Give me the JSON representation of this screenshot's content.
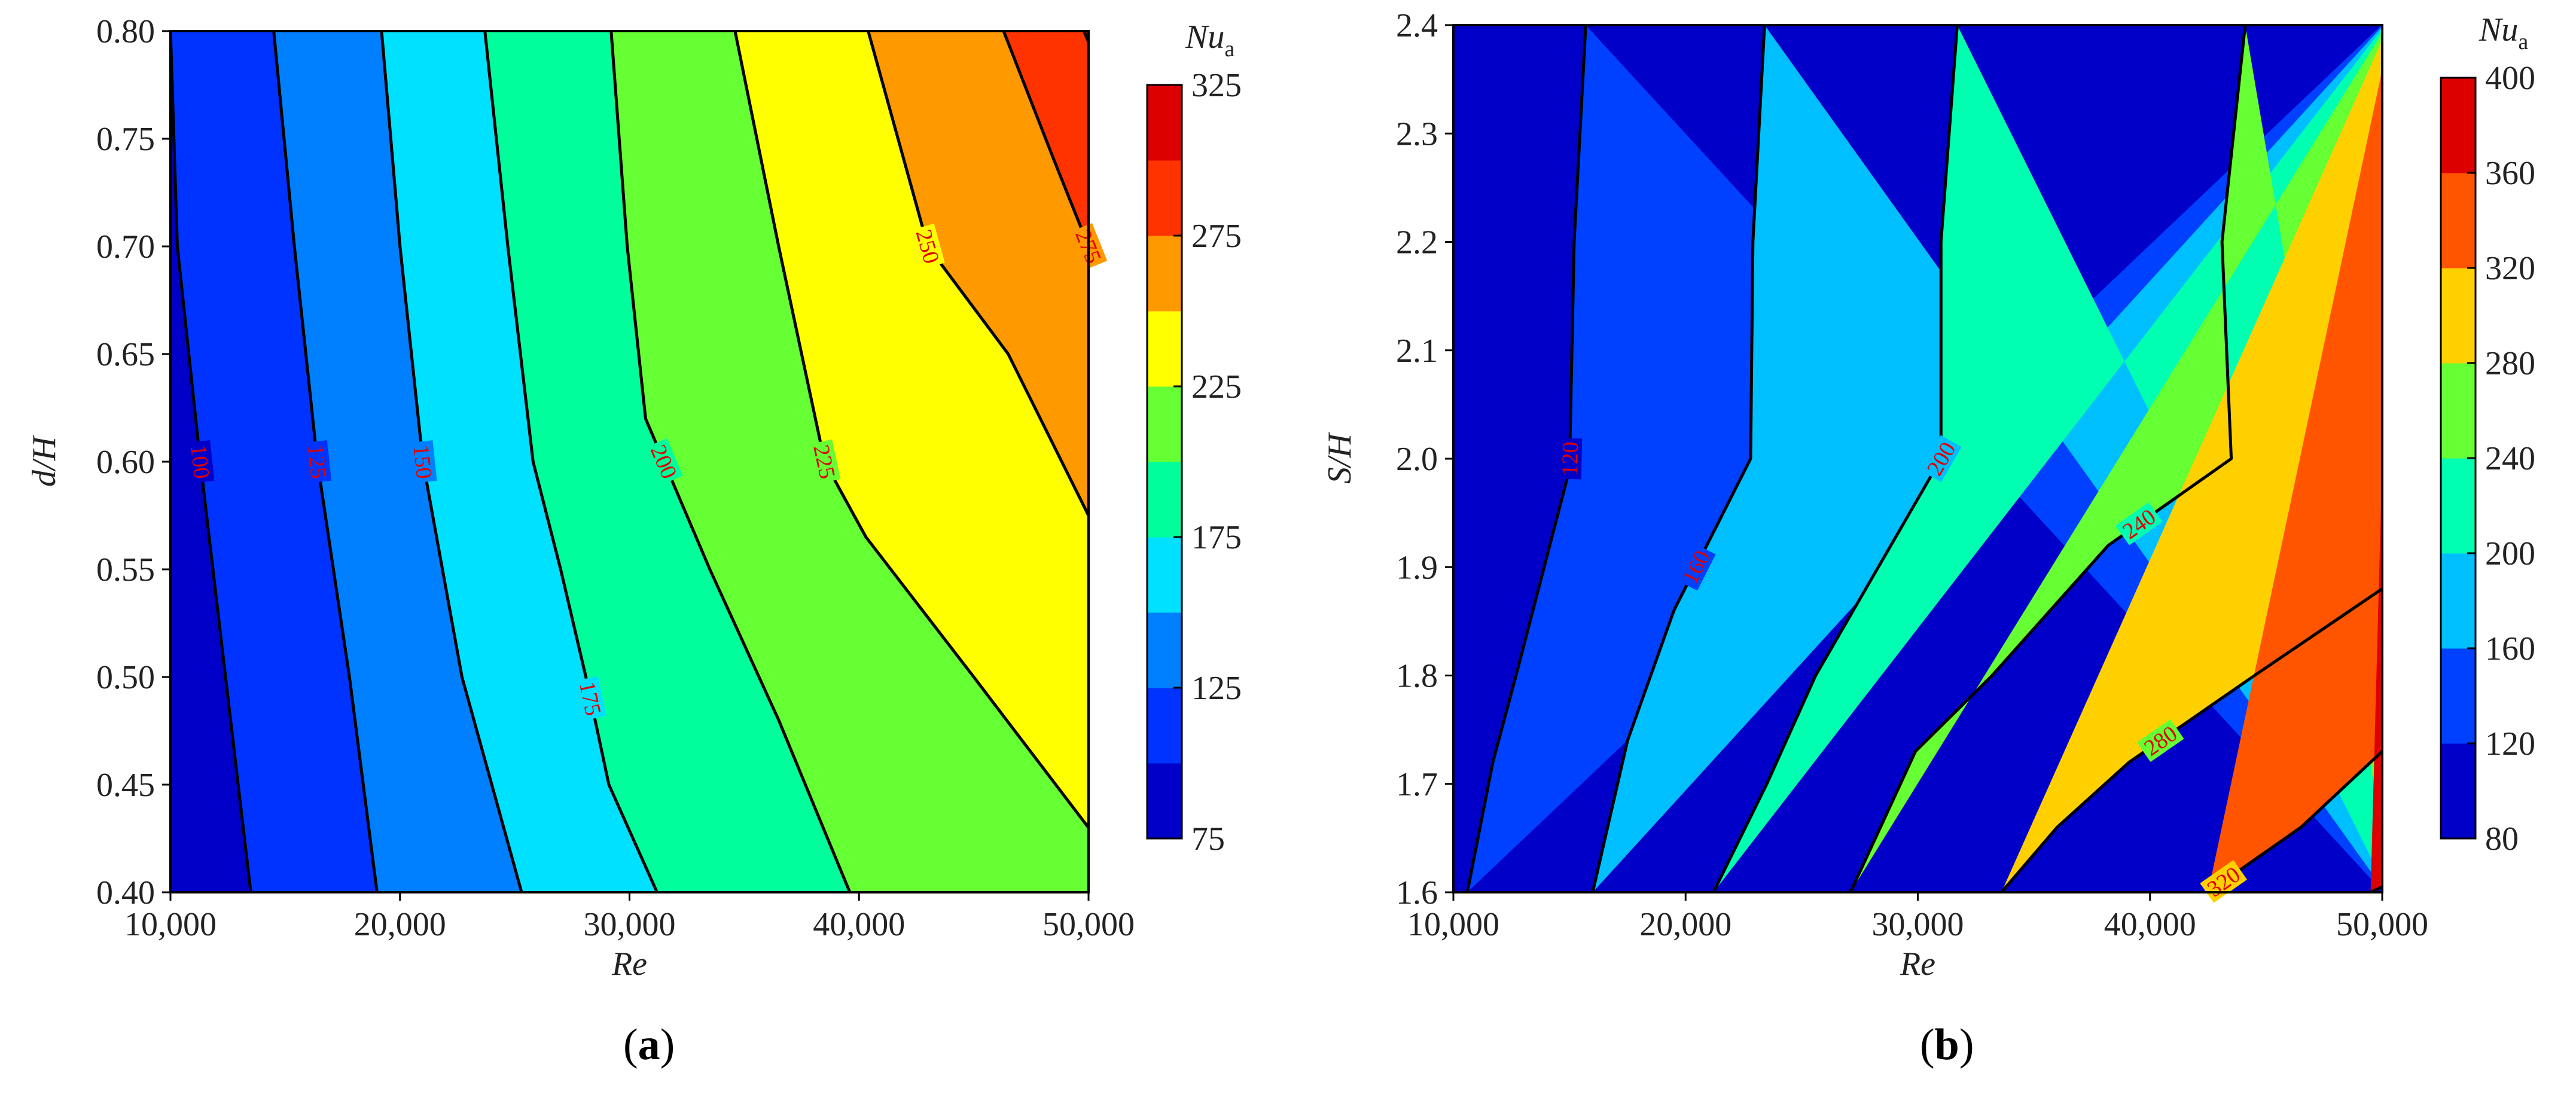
{
  "figure": {
    "panel_a_label": {
      "open": "(",
      "letter": "a",
      "close": ")"
    },
    "panel_b_label": {
      "open": "(",
      "letter": "b",
      "close": ")"
    }
  },
  "chart_data": [
    {
      "type": "heatmap",
      "subtype": "filled-contour",
      "xlabel": "Re",
      "ylabel": "d/H",
      "xlim": [
        10000,
        50000
      ],
      "ylim": [
        0.4,
        0.8
      ],
      "x_ticks": [
        10000,
        20000,
        30000,
        40000,
        50000
      ],
      "x_tick_labels": [
        "10,000",
        "20,000",
        "30,000",
        "40,000",
        "50,000"
      ],
      "y_ticks": [
        0.4,
        0.45,
        0.5,
        0.55,
        0.6,
        0.65,
        0.7,
        0.75,
        0.8
      ],
      "y_tick_labels": [
        "0.40",
        "0.45",
        "0.50",
        "0.55",
        "0.60",
        "0.65",
        "0.70",
        "0.75",
        "0.80"
      ],
      "colorbar": {
        "title_main": "Nu",
        "title_sub": "a",
        "range": [
          75,
          325
        ],
        "levels": [
          75,
          100,
          125,
          150,
          175,
          200,
          225,
          250,
          275,
          300,
          325
        ],
        "tick_values": [
          75,
          125,
          175,
          225,
          275,
          325
        ],
        "tick_labels": [
          "75",
          "125",
          "175",
          "225",
          "275",
          "325"
        ],
        "colors": [
          "#0000c8",
          "#0033ff",
          "#0080ff",
          "#00e0ff",
          "#00ff9c",
          "#66ff33",
          "#ffff00",
          "#ff9900",
          "#ff3300",
          "#dd0000"
        ]
      },
      "contour_lines": [
        {
          "level": 100,
          "label": "100",
          "points": [
            [
              10000,
              0.8
            ],
            [
              10300,
              0.7
            ],
            [
              11300,
              0.6
            ],
            [
              12400,
              0.5
            ],
            [
              13500,
              0.4
            ]
          ]
        },
        {
          "level": 125,
          "label": "125",
          "points": [
            [
              14500,
              0.8
            ],
            [
              15400,
              0.7
            ],
            [
              16400,
              0.6
            ],
            [
              17800,
              0.5
            ],
            [
              19000,
              0.4
            ]
          ]
        },
        {
          "level": 150,
          "label": "150",
          "points": [
            [
              19200,
              0.8
            ],
            [
              20000,
              0.7
            ],
            [
              21000,
              0.6
            ],
            [
              22700,
              0.5
            ],
            [
              25300,
              0.4
            ]
          ]
        },
        {
          "level": 175,
          "label": "175",
          "points": [
            [
              23700,
              0.8
            ],
            [
              24700,
              0.7
            ],
            [
              25800,
              0.6
            ],
            [
              27000,
              0.55
            ],
            [
              28100,
              0.5
            ],
            [
              29100,
              0.45
            ],
            [
              31200,
              0.4
            ]
          ]
        },
        {
          "level": 200,
          "label": "200",
          "points": [
            [
              29200,
              0.8
            ],
            [
              29900,
              0.7
            ],
            [
              30700,
              0.62
            ],
            [
              33500,
              0.55
            ],
            [
              36500,
              0.48
            ],
            [
              39600,
              0.4
            ]
          ]
        },
        {
          "level": 225,
          "label": "225",
          "points": [
            [
              34600,
              0.8
            ],
            [
              36500,
              0.7
            ],
            [
              38500,
              0.6
            ],
            [
              40300,
              0.565
            ],
            [
              45000,
              0.5
            ],
            [
              50000,
              0.43
            ]
          ]
        },
        {
          "level": 250,
          "label": "250",
          "points": [
            [
              40400,
              0.8
            ],
            [
              43000,
              0.7
            ],
            [
              46500,
              0.65
            ],
            [
              50000,
              0.575
            ]
          ]
        },
        {
          "level": 275,
          "label": "275",
          "points": [
            [
              46300,
              0.8
            ],
            [
              48500,
              0.74
            ],
            [
              50000,
              0.7
            ]
          ]
        },
        {
          "level": 300,
          "label": "",
          "points": [
            [
              49800,
              0.8
            ],
            [
              50000,
              0.795
            ]
          ]
        }
      ]
    },
    {
      "type": "heatmap",
      "subtype": "filled-contour",
      "xlabel": "Re",
      "ylabel": "S/H",
      "xlim": [
        10000,
        50000
      ],
      "ylim": [
        1.6,
        2.4
      ],
      "x_ticks": [
        10000,
        20000,
        30000,
        40000,
        50000
      ],
      "x_tick_labels": [
        "10,000",
        "20,000",
        "30,000",
        "40,000",
        "50,000"
      ],
      "y_ticks": [
        1.6,
        1.7,
        1.8,
        1.9,
        2.0,
        2.1,
        2.2,
        2.3,
        2.4
      ],
      "y_tick_labels": [
        "1.6",
        "1.7",
        "1.8",
        "1.9",
        "2.0",
        "2.1",
        "2.2",
        "2.3",
        "2.4"
      ],
      "colorbar": {
        "title_main": "Nu",
        "title_sub": "a",
        "range": [
          80,
          400
        ],
        "levels": [
          80,
          120,
          160,
          200,
          240,
          280,
          320,
          360,
          400
        ],
        "tick_values": [
          80,
          120,
          160,
          200,
          240,
          280,
          320,
          360,
          400
        ],
        "tick_labels": [
          "80",
          "120",
          "160",
          "200",
          "240",
          "280",
          "320",
          "360",
          "400"
        ],
        "colors": [
          "#0000c8",
          "#0040ff",
          "#00bfff",
          "#00ffb0",
          "#66ff33",
          "#ffd000",
          "#ff5500",
          "#dd0000"
        ]
      },
      "contour_lines": [
        {
          "level": 120,
          "label": "120",
          "points": [
            [
              10600,
              1.6
            ],
            [
              11700,
              1.72
            ],
            [
              12700,
              1.8
            ],
            [
              15000,
              1.99
            ],
            [
              15200,
              2.2
            ],
            [
              15700,
              2.4
            ]
          ]
        },
        {
          "level": 160,
          "label": "160",
          "points": [
            [
              16000,
              1.6
            ],
            [
              17500,
              1.74
            ],
            [
              19500,
              1.86
            ],
            [
              22800,
              2.0
            ],
            [
              22900,
              2.2
            ],
            [
              23400,
              2.4
            ]
          ]
        },
        {
          "level": 200,
          "label": "200",
          "points": [
            [
              21200,
              1.6
            ],
            [
              23500,
              1.7
            ],
            [
              25600,
              1.8
            ],
            [
              31000,
              2.0
            ],
            [
              31000,
              2.2
            ],
            [
              31700,
              2.4
            ]
          ]
        },
        {
          "level": 240,
          "label": "240",
          "points": [
            [
              27100,
              1.6
            ],
            [
              29900,
              1.73
            ],
            [
              33200,
              1.8
            ],
            [
              38200,
              1.92
            ],
            [
              43500,
              2.0
            ],
            [
              43100,
              2.2
            ],
            [
              44100,
              2.4
            ]
          ]
        },
        {
          "level": 280,
          "label": "280",
          "points": [
            [
              33600,
              1.6
            ],
            [
              36000,
              1.66
            ],
            [
              39100,
              1.72
            ],
            [
              44500,
              1.8
            ],
            [
              50000,
              1.88
            ]
          ]
        },
        {
          "level": 320,
          "label": "320",
          "points": [
            [
              42500,
              1.6
            ],
            [
              46500,
              1.66
            ],
            [
              50000,
              1.73
            ]
          ]
        },
        {
          "level": 360,
          "label": "",
          "points": [
            [
              49500,
              1.6
            ],
            [
              50000,
              1.605
            ]
          ]
        }
      ]
    }
  ]
}
